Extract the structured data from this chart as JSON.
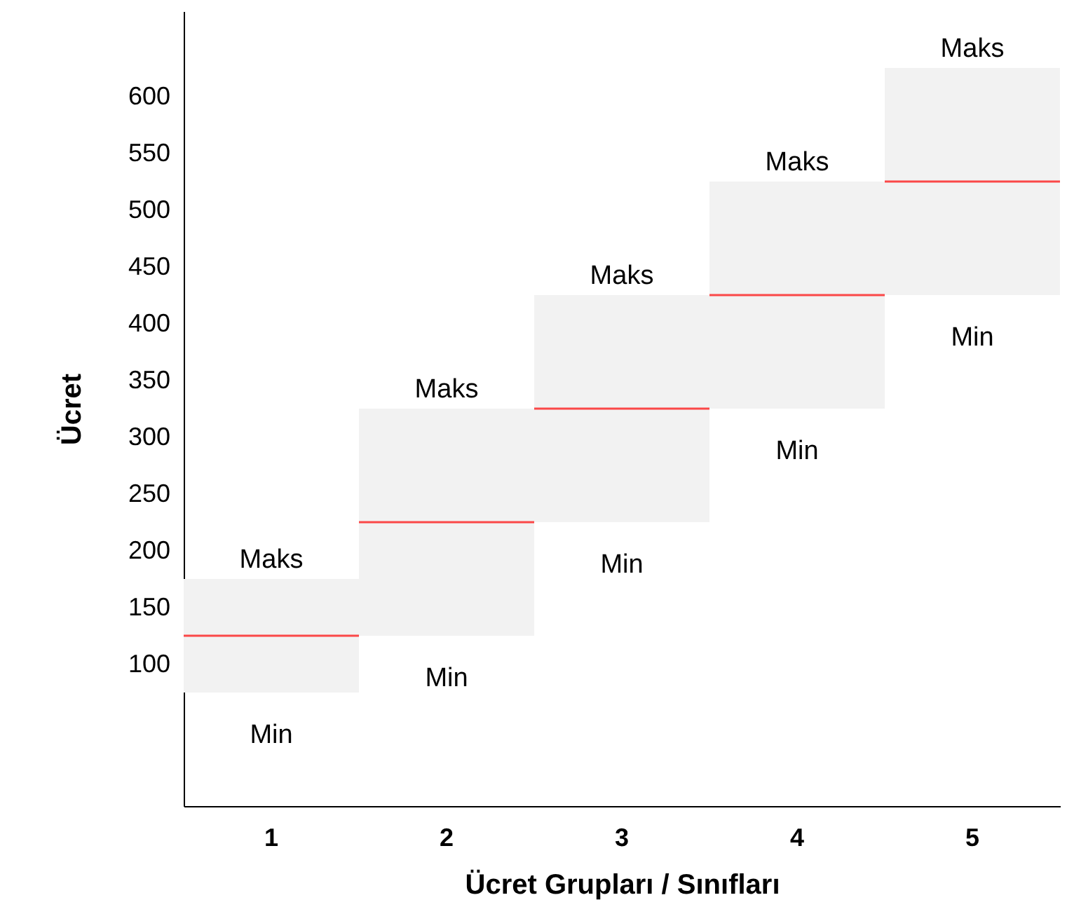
{
  "chart_data": {
    "type": "box",
    "xlabel": "Ücret Grupları / Sınıfları",
    "ylabel": "Ücret",
    "categories": [
      "1",
      "2",
      "3",
      "4",
      "5"
    ],
    "series": [
      {
        "color": "#f2f2f2",
        "boxes": [
          {
            "low": 75,
            "q1": 75,
            "median": 125,
            "q3": 175,
            "high": 175
          },
          {
            "low": 125,
            "q1": 125,
            "median": 225,
            "q3": 325,
            "high": 325
          },
          {
            "low": 225,
            "q1": 225,
            "median": 325,
            "q3": 425,
            "high": 425
          },
          {
            "low": 325,
            "q1": 325,
            "median": 425,
            "q3": 525,
            "high": 525
          },
          {
            "low": 425,
            "q1": 425,
            "median": 525,
            "q3": 625,
            "high": 625
          }
        ]
      }
    ],
    "ylim": [
      -25,
      675
    ],
    "yticks": [
      100,
      150,
      200,
      250,
      300,
      350,
      400,
      450,
      500,
      550,
      600
    ],
    "annotations": [
      {
        "text": "Maks",
        "x": "1",
        "y": 175
      },
      {
        "text": "Min",
        "x": "1",
        "y": 75
      },
      {
        "text": "Maks",
        "x": "2",
        "y": 325
      },
      {
        "text": "Min",
        "x": "2",
        "y": 125
      },
      {
        "text": "Maks",
        "x": "3",
        "y": 425
      },
      {
        "text": "Min",
        "x": "3",
        "y": 225
      },
      {
        "text": "Maks",
        "x": "4",
        "y": 525
      },
      {
        "text": "Min",
        "x": "4",
        "y": 325
      },
      {
        "text": "Maks",
        "x": "5",
        "y": 625
      },
      {
        "text": "Min",
        "x": "5",
        "y": 425
      }
    ],
    "grid": false
  }
}
